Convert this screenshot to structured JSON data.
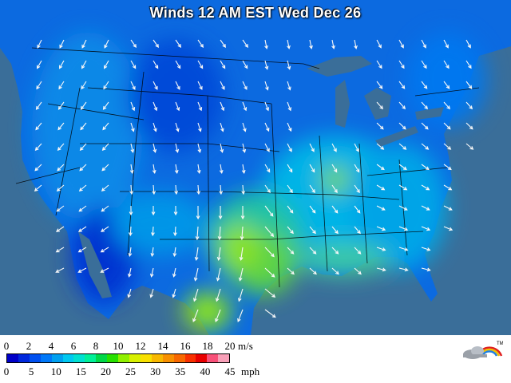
{
  "title": "Winds 12 AM EST Wed Dec 26",
  "legend": {
    "ms_ticks": [
      "0",
      "2",
      "4",
      "6",
      "8",
      "10",
      "12",
      "14",
      "16",
      "18",
      "20"
    ],
    "ms_unit": "m/s",
    "mph_ticks": [
      "0",
      "5",
      "10",
      "15",
      "20",
      "25",
      "30",
      "35",
      "40",
      "45"
    ],
    "mph_unit": "mph",
    "colors": [
      "#0000c8",
      "#0028dc",
      "#0050f0",
      "#0078f8",
      "#00a0f0",
      "#00c8f0",
      "#00e0d0",
      "#00f098",
      "#00d848",
      "#28e000",
      "#90f000",
      "#d8f000",
      "#f8e000",
      "#f8b800",
      "#f89000",
      "#f86800",
      "#f83000",
      "#e80000",
      "#f85078",
      "#f8a0b8"
    ]
  },
  "logo": {
    "mark": "TM"
  },
  "colors": {
    "ocean": "#3a6e99",
    "land_outside": "#9aa6b2"
  }
}
